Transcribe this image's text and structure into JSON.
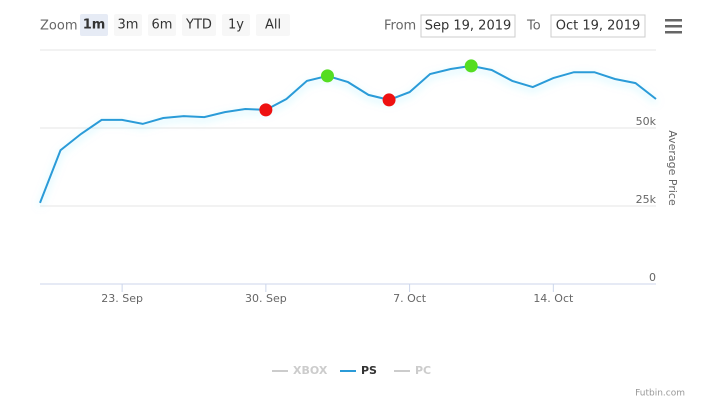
{
  "chart_data": {
    "type": "line",
    "range_selector": {
      "label": "Zoom",
      "buttons": [
        "1m",
        "3m",
        "6m",
        "YTD",
        "1y",
        "All"
      ],
      "selected": "1m",
      "from_label": "From",
      "from": "Sep 19, 2019",
      "to_label": "To",
      "to": "Oct 19, 2019"
    },
    "y_axis_label": "Average Price",
    "credits": "Futbin.com",
    "x": [
      "2019-09-19",
      "2019-09-20",
      "2019-09-21",
      "2019-09-22",
      "2019-09-23",
      "2019-09-24",
      "2019-09-25",
      "2019-09-26",
      "2019-09-27",
      "2019-09-28",
      "2019-09-29",
      "2019-09-30",
      "2019-10-01",
      "2019-10-02",
      "2019-10-03",
      "2019-10-04",
      "2019-10-05",
      "2019-10-06",
      "2019-10-07",
      "2019-10-08",
      "2019-10-09",
      "2019-10-10",
      "2019-10-11",
      "2019-10-12",
      "2019-10-13",
      "2019-10-14",
      "2019-10-15",
      "2019-10-16",
      "2019-10-17",
      "2019-10-18",
      "2019-10-19"
    ],
    "series": [
      {
        "name": "XBOX",
        "visible": false,
        "color": "#cccccc"
      },
      {
        "name": "PS",
        "visible": true,
        "color": "#2b9bd8",
        "values": [
          26000,
          42900,
          48100,
          52600,
          52600,
          51300,
          53200,
          53800,
          53500,
          55100,
          56100,
          55800,
          59300,
          65100,
          66700,
          64700,
          60600,
          59000,
          61500,
          67300,
          68900,
          69900,
          68600,
          65100,
          63100,
          66000,
          67900,
          67900,
          65700,
          64400,
          59300
        ]
      },
      {
        "name": "PC",
        "visible": false,
        "color": "#cccccc"
      }
    ],
    "markers": [
      {
        "x": "2019-09-30",
        "color": "#ee1111"
      },
      {
        "x": "2019-10-03",
        "color": "#55dd22"
      },
      {
        "x": "2019-10-06",
        "color": "#ee1111"
      },
      {
        "x": "2019-10-10",
        "color": "#55dd22"
      }
    ],
    "xlim": [
      "2019-09-19",
      "2019-10-19"
    ],
    "xticks": [
      {
        "value": "2019-09-23",
        "label": "23. Sep"
      },
      {
        "value": "2019-09-30",
        "label": "30. Sep"
      },
      {
        "value": "2019-10-07",
        "label": "7. Oct"
      },
      {
        "value": "2019-10-14",
        "label": "14. Oct"
      }
    ],
    "ylim": [
      0,
      75000
    ],
    "yticks": [
      0,
      {
        "value": 25000,
        "label": "25k"
      },
      {
        "value": 50000,
        "label": "50k"
      },
      75000
    ],
    "grid": true
  }
}
